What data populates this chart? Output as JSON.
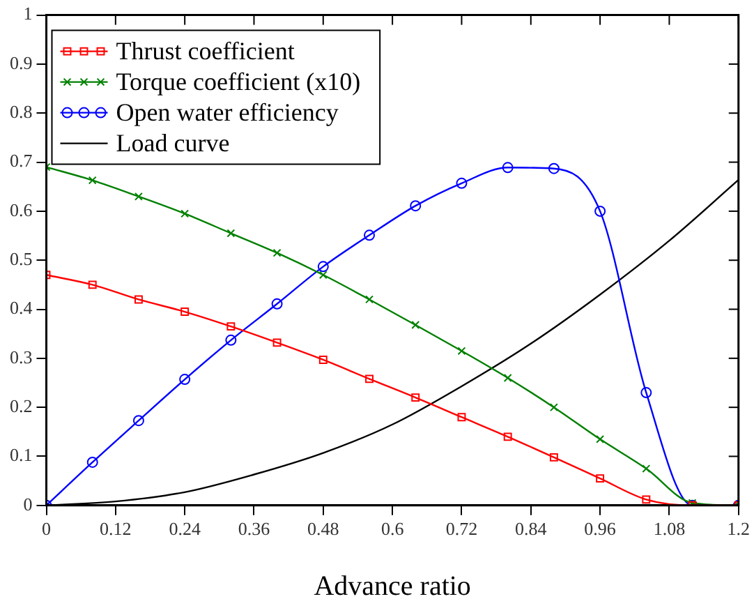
{
  "chart_data": {
    "type": "line",
    "xlabel": "Advance ratio",
    "x": [
      0,
      0.08,
      0.16,
      0.24,
      0.32,
      0.4,
      0.48,
      0.56,
      0.64,
      0.72,
      0.8,
      0.88,
      0.96,
      1.04,
      1.12,
      1.2
    ],
    "xlim": [
      0,
      1.2
    ],
    "xticks": [
      0,
      0.12,
      0.24,
      0.36,
      0.48,
      0.6,
      0.72,
      0.84,
      0.96,
      1.08,
      1.2
    ],
    "ylim": [
      0,
      1
    ],
    "yticks": [
      0,
      0.1,
      0.2,
      0.3,
      0.4,
      0.5,
      0.6,
      0.7,
      0.8,
      0.9,
      1
    ],
    "grid": false,
    "legend": "top left",
    "series": [
      {
        "name": "Thrust coefficient",
        "color": "#ff0000",
        "marker": "square",
        "values": [
          0.47,
          0.45,
          0.42,
          0.395,
          0.365,
          0.332,
          0.297,
          0.258,
          0.22,
          0.18,
          0.14,
          0.098,
          0.055,
          0.012,
          0,
          0
        ]
      },
      {
        "name": "Torque coefficient (x10)",
        "color": "#008000",
        "marker": "cross",
        "values": [
          0.69,
          0.663,
          0.63,
          0.595,
          0.555,
          0.515,
          0.47,
          0.42,
          0.368,
          0.315,
          0.26,
          0.2,
          0.135,
          0.075,
          0.005,
          0
        ]
      },
      {
        "name": "Open water efficiency",
        "color": "#0000ff",
        "marker": "circle",
        "values": [
          0,
          0.088,
          0.173,
          0.257,
          0.337,
          0.411,
          0.487,
          0.551,
          0.611,
          0.657,
          0.689,
          0.687,
          0.6,
          0.23,
          0,
          0
        ]
      },
      {
        "name": "Load curve",
        "color": "#000000",
        "marker": "none",
        "x": [
          0,
          0.12,
          0.24,
          0.36,
          0.48,
          0.6,
          0.72,
          0.84,
          0.96,
          1.08,
          1.2
        ],
        "values": [
          0,
          0.008,
          0.027,
          0.063,
          0.107,
          0.165,
          0.243,
          0.33,
          0.43,
          0.54,
          0.664
        ]
      }
    ]
  }
}
